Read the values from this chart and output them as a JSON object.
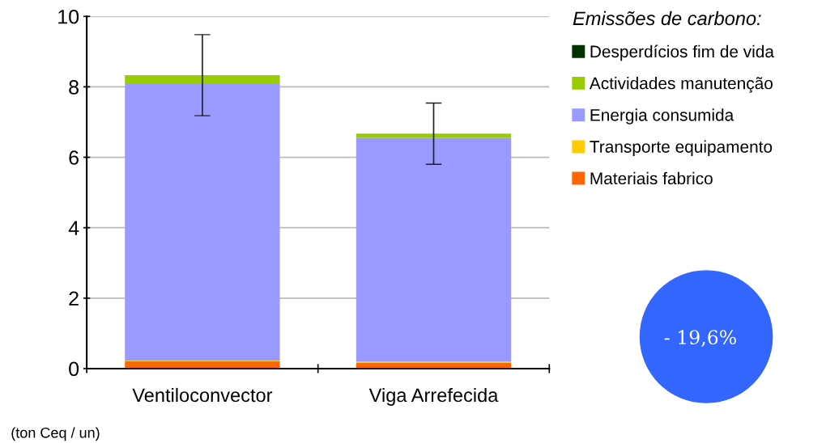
{
  "chart_data": {
    "type": "bar",
    "stacked": true,
    "categories": [
      "Ventiloconvector",
      "Viga Arrefecida"
    ],
    "series": [
      {
        "name": "Materiais fabrico",
        "color": "#ff6600",
        "values": [
          0.21,
          0.17
        ]
      },
      {
        "name": "Transporte equipamento",
        "color": "#ffcc00",
        "values": [
          0.02,
          0.03
        ]
      },
      {
        "name": "Energia consumida",
        "color": "#9999ff",
        "values": [
          7.87,
          6.35
        ]
      },
      {
        "name": "Actividades manutenção",
        "color": "#99cc00",
        "values": [
          0.23,
          0.12
        ]
      },
      {
        "name": "Desperdícios fim de vida",
        "color": "#003300",
        "values": [
          0,
          0
        ],
        "errors": [
          1.15,
          0.87
        ]
      }
    ],
    "ylim": [
      0,
      10
    ],
    "yticks": [
      0,
      2,
      4,
      6,
      8,
      10
    ],
    "grid": "y",
    "legend": "right",
    "legend_title": "Emissões de carbono:",
    "annotations": [
      "(ton Ceq / un)",
      "- 19,6%"
    ]
  }
}
